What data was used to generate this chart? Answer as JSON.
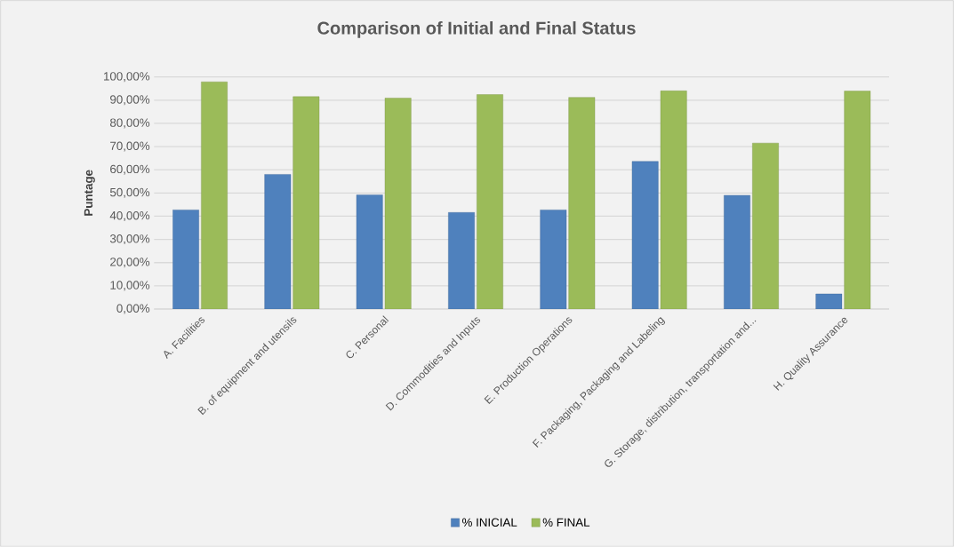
{
  "chart_data": {
    "type": "bar",
    "title": "Comparison of Initial and Final Status",
    "ylabel": "Puntage",
    "categories": [
      "A. Facilities",
      "B. of equipment and utensils",
      "C. Personal",
      "D. Commodities and Inputs",
      "E. Production Operations",
      "F. Packaging, Packaging and Labeling",
      "G. Storage, distribution, transportation and...",
      "H. Quality Assurance"
    ],
    "series": [
      {
        "name": "% INICIAL",
        "color": "#4f81bd",
        "values": [
          42.7,
          58.0,
          49.2,
          41.6,
          42.7,
          63.6,
          49.0,
          6.5
        ]
      },
      {
        "name": "% FINAL",
        "color": "#9bbb59",
        "values": [
          97.9,
          91.5,
          90.9,
          92.4,
          91.2,
          94.0,
          71.5,
          93.9
        ]
      }
    ],
    "ylim": [
      0,
      100
    ],
    "yticks": [
      {
        "value": 0,
        "label": "0,00%"
      },
      {
        "value": 10,
        "label": "10,00%"
      },
      {
        "value": 20,
        "label": "20,00%"
      },
      {
        "value": 30,
        "label": "30,00%"
      },
      {
        "value": 40,
        "label": "40,00%"
      },
      {
        "value": 50,
        "label": "50,00%"
      },
      {
        "value": 60,
        "label": "60,00%"
      },
      {
        "value": 70,
        "label": "70,00%"
      },
      {
        "value": 80,
        "label": "80,00%"
      },
      {
        "value": 90,
        "label": "90,00%"
      },
      {
        "value": 100,
        "label": "100,00%"
      }
    ],
    "grid": "y",
    "legend": "bottom"
  }
}
